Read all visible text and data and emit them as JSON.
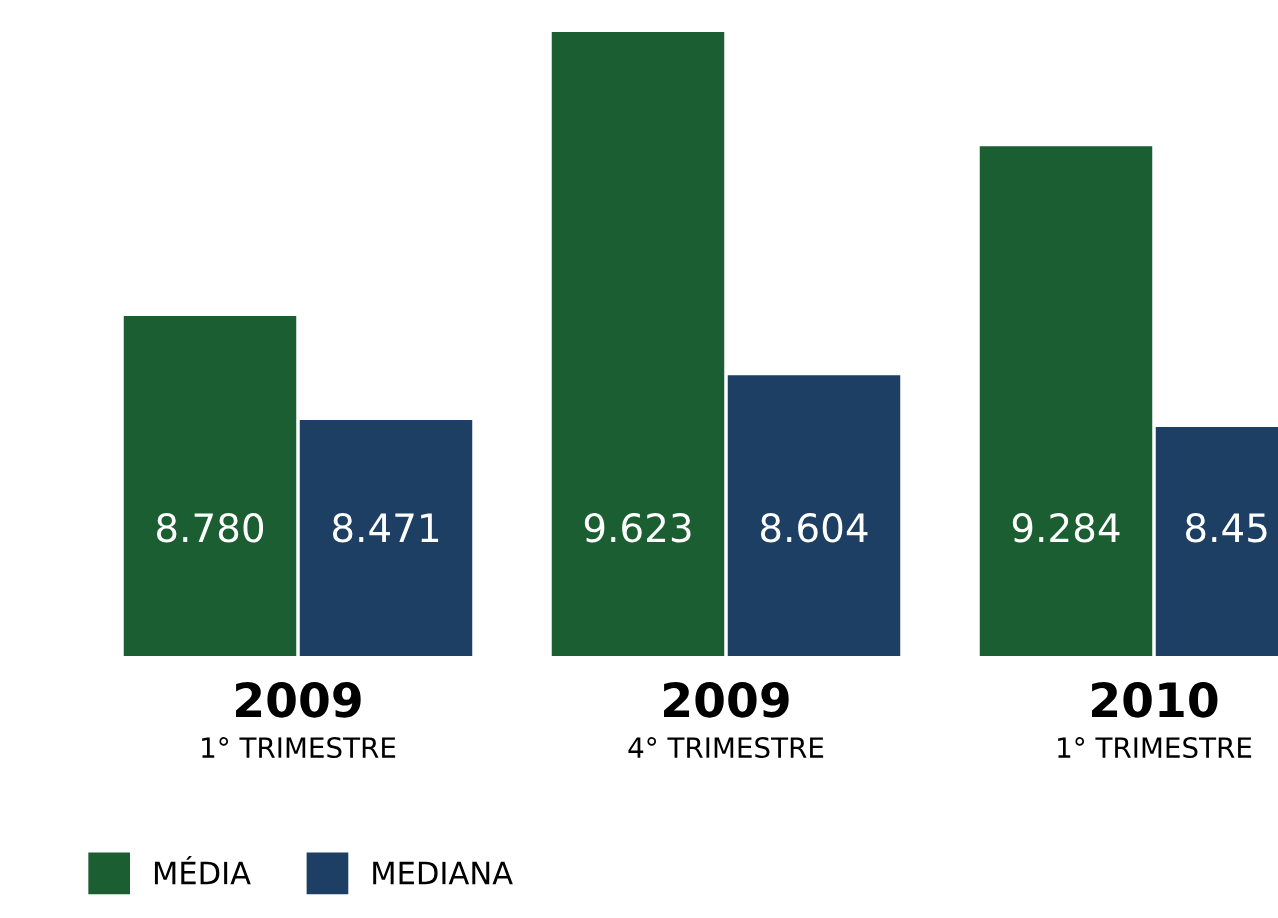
{
  "chart_data": {
    "type": "bar",
    "categories": [
      "2009\n1° TRIMESTRE",
      "2009\n4° TRIMESTRE",
      "2010\n1° TRIMESTRE"
    ],
    "series": [
      {
        "name": "MÉDIA",
        "color": "#1b5e32",
        "values": [
          8.78,
          9.623,
          9.284
        ],
        "value_labels": [
          "8.780",
          "9.623",
          "9.284"
        ]
      },
      {
        "name": "MEDIANA",
        "color": "#1d3f64",
        "values": [
          8.471,
          8.604,
          8.45
        ],
        "value_labels": [
          "8.471",
          "8.604",
          "8.45"
        ]
      }
    ],
    "ylim": [
      7.77,
      9.623
    ],
    "legend": "bottom left"
  }
}
